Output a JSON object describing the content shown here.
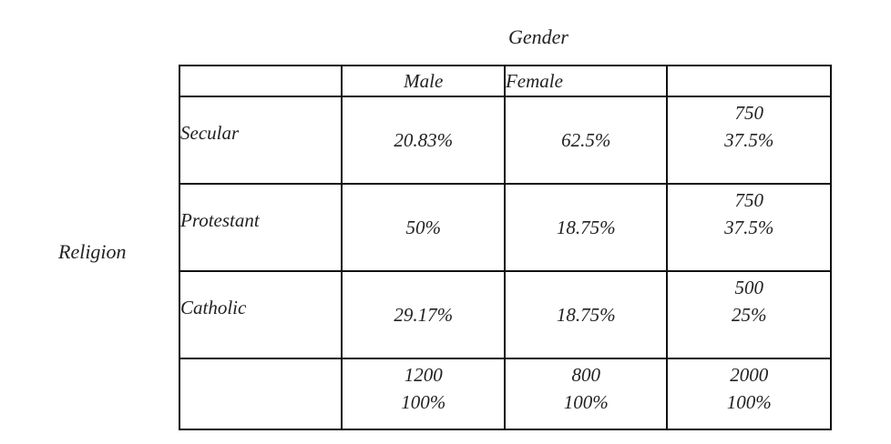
{
  "column_variable": "Gender",
  "row_variable": "Religion",
  "header": {
    "corner": "",
    "male": "Male",
    "female": "Female",
    "total": ""
  },
  "rows": [
    {
      "label": "Secular",
      "male": "20.83%",
      "female": "62.5%",
      "total_count": "750",
      "total_pct": "37.5%"
    },
    {
      "label": "Protestant",
      "male": "50%",
      "female": "18.75%",
      "total_count": "750",
      "total_pct": "37.5%"
    },
    {
      "label": "Catholic",
      "male": "29.17%",
      "female": "18.75%",
      "total_count": "500",
      "total_pct": "25%"
    }
  ],
  "totals": {
    "label": "",
    "male_count": "1200",
    "male_pct": "100%",
    "female_count": "800",
    "female_pct": "100%",
    "grand_count": "2000",
    "grand_pct": "100%"
  }
}
